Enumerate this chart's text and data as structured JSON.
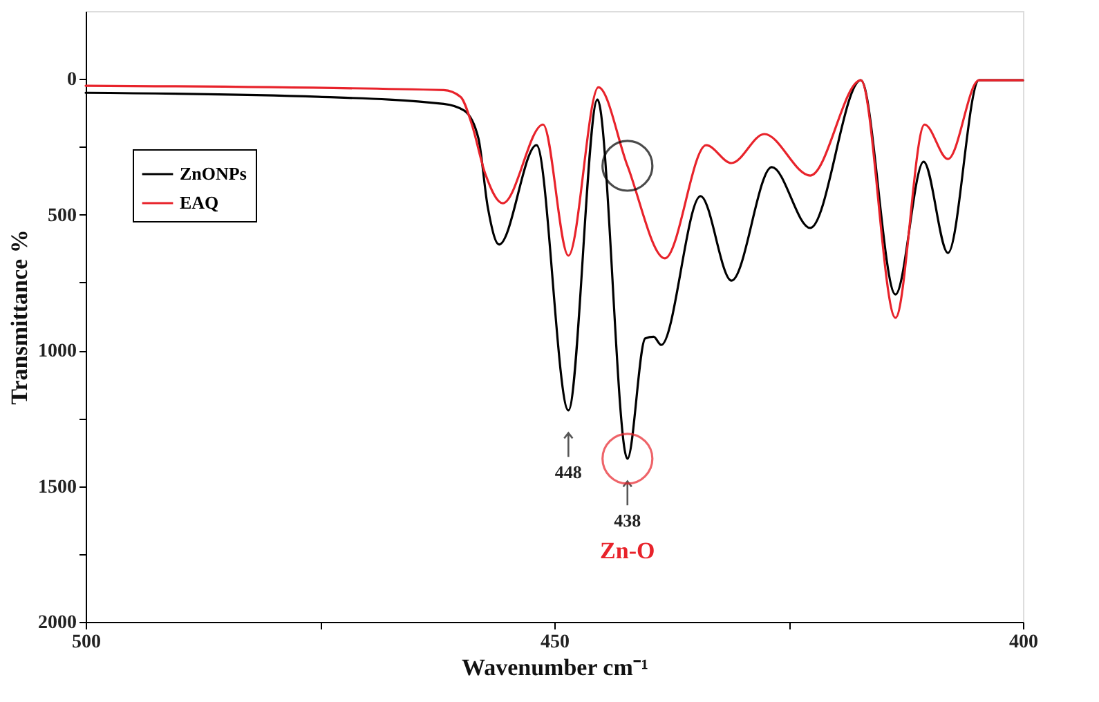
{
  "chart_data": {
    "type": "line",
    "xlabel": "Wavenumber cm⁻¹",
    "ylabel": "Transmittance %",
    "xlim": [
      500,
      400
    ],
    "xticks": [
      500,
      {
        "value": 475,
        "label": null
      },
      450,
      {
        "value": 425,
        "label": null
      },
      400
    ],
    "ylim": [
      2000,
      -250
    ],
    "yticks": [
      0,
      {
        "value": 250,
        "label": null
      },
      500,
      {
        "value": 750,
        "label": null
      },
      1000,
      {
        "value": 1250,
        "label": null
      },
      1500,
      {
        "value": 1750,
        "label": null
      },
      2000
    ],
    "legend": "top left",
    "series": [
      {
        "name": "ZnONPs",
        "color": "#000000",
        "x": [
          500,
          475.1,
          461.8,
          459.6,
          458.1,
          457.1,
          455.9,
          451.9,
          448.5,
          445.4,
          442.2,
          440.3,
          439.4,
          438.6,
          434.4,
          431.1,
          426.8,
          422.7,
          417.3,
          413.6,
          410.6,
          408.0,
          404.7,
          400
        ],
        "values": [
          51,
          66,
          92,
          117,
          219,
          473,
          610,
          244,
          1221,
          76,
          1399,
          956,
          950,
          980,
          432,
          743,
          325,
          549,
          5,
          794,
          305,
          641,
          5,
          5
        ]
      },
      {
        "name": "EAQ",
        "color": "#e8232b",
        "x": [
          500,
          461.8,
          460.0,
          458.8,
          457.4,
          455.5,
          451.2,
          448.5,
          445.3,
          442.2,
          438.2,
          433.8,
          431.1,
          427.6,
          422.7,
          417.3,
          413.6,
          410.5,
          408.0,
          404.7,
          400
        ],
        "values": [
          25,
          41,
          66,
          168,
          346,
          458,
          168,
          651,
          31,
          320,
          661,
          244,
          310,
          203,
          356,
          5,
          880,
          168,
          295,
          5,
          5
        ]
      }
    ],
    "annotations": [
      {
        "text": "448",
        "x": 448.5,
        "y": 1221
      },
      {
        "text": "438",
        "x": 442.2,
        "y": 1399
      },
      "Zn-O"
    ]
  }
}
